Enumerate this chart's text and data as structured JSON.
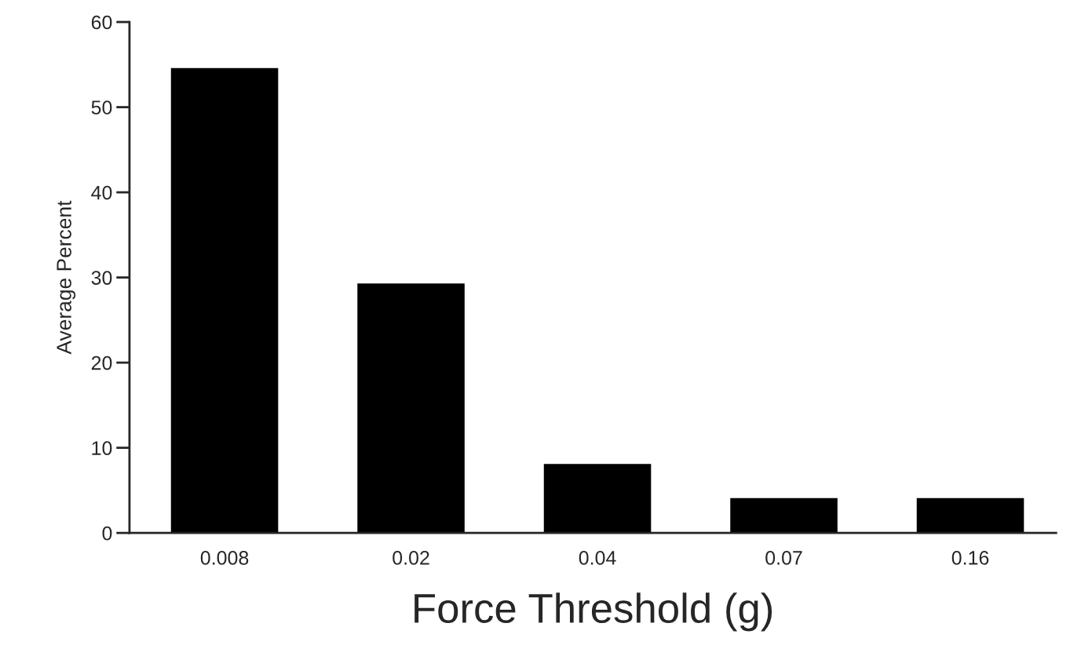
{
  "chart_data": {
    "type": "bar",
    "xlabel": "Force Threshold (g)",
    "ylabel": "Average Percent",
    "categories": [
      "0.008",
      "0.02",
      "0.04",
      "0.07",
      "0.16"
    ],
    "values": [
      54.6,
      29.3,
      8.1,
      4.1,
      4.1
    ],
    "color": "#000000",
    "ylim": [
      0,
      60
    ],
    "yticks": [
      0,
      10,
      20,
      30,
      40,
      50,
      60
    ],
    "grid": false,
    "legend": false
  }
}
